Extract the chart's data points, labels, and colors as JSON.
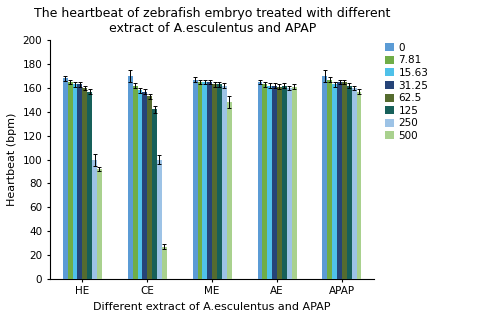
{
  "title": "The heartbeat of zebrafish embryo treated with different\nextract of A.esculentus and APAP",
  "xlabel": "Different extract of A.esculentus and APAP",
  "ylabel": "Heartbeat (bpm)",
  "categories": [
    "HE",
    "CE",
    "ME",
    "AE",
    "APAP"
  ],
  "series_labels": [
    "0",
    "7.81",
    "15.63",
    "31.25",
    "62.5",
    "125",
    "250",
    "500"
  ],
  "colors": [
    "#5B9BD5",
    "#70AD47",
    "#4FC1E9",
    "#264478",
    "#556B2F",
    "#17605A",
    "#9DC3E6",
    "#A9D18E"
  ],
  "values": {
    "HE": [
      168,
      165,
      163,
      163,
      160,
      157,
      100,
      92
    ],
    "CE": [
      170,
      162,
      158,
      157,
      153,
      142,
      100,
      27
    ],
    "ME": [
      167,
      165,
      165,
      165,
      163,
      163,
      162,
      148
    ],
    "AE": [
      165,
      163,
      162,
      162,
      161,
      162,
      160,
      161
    ],
    "APAP": [
      170,
      167,
      163,
      165,
      165,
      162,
      160,
      157
    ]
  },
  "errors": {
    "HE": [
      2,
      2,
      2,
      2,
      2,
      2,
      5,
      2
    ],
    "CE": [
      5,
      2,
      2,
      2,
      2,
      3,
      4,
      2
    ],
    "ME": [
      2,
      2,
      2,
      2,
      2,
      2,
      2,
      5
    ],
    "AE": [
      2,
      2,
      2,
      2,
      2,
      2,
      2,
      2
    ],
    "APAP": [
      5,
      2,
      2,
      2,
      2,
      2,
      2,
      2
    ]
  },
  "ylim": [
    0,
    200
  ],
  "yticks": [
    0,
    20,
    40,
    60,
    80,
    100,
    120,
    140,
    160,
    180,
    200
  ],
  "background_color": "#FFFFFF",
  "title_fontsize": 9,
  "axis_fontsize": 8,
  "tick_fontsize": 7.5,
  "legend_fontsize": 7.5
}
